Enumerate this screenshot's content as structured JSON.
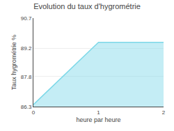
{
  "chart_data": {
    "type": "area",
    "title": "Evolution du taux d'hygrométrie",
    "xlabel": "heure par heure",
    "ylabel": "Taux hygrométrie %",
    "x": [
      0,
      1,
      2
    ],
    "values": [
      86.4,
      89.5,
      89.5
    ],
    "xlim": [
      0,
      2
    ],
    "ylim": [
      86.3,
      90.7
    ],
    "xticks": [
      0,
      1,
      2
    ],
    "yticks": [
      86.3,
      87.8,
      89.2,
      90.7
    ],
    "color": "#7dd8e8",
    "grid": true
  }
}
